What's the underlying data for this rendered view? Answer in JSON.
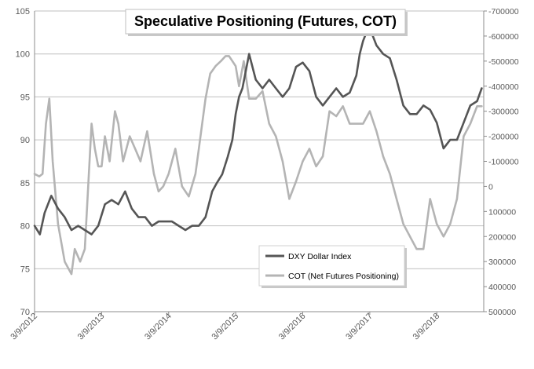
{
  "chart_data": {
    "type": "line",
    "title": "Speculative Positioning (Futures, COT)",
    "xlabel": "",
    "ylabel": "",
    "x_ticks": [
      "3/9/2012",
      "3/9/2013",
      "3/9/2014",
      "3/9/2015",
      "3/9/2016",
      "3/9/2017",
      "3/9/2018"
    ],
    "x_range": [
      2012.0,
      2018.7
    ],
    "y_left": {
      "ylim": [
        70,
        105
      ],
      "ticks": [
        "70",
        "75",
        "80",
        "85",
        "90",
        "95",
        "100",
        "105"
      ]
    },
    "y_right": {
      "ylim": [
        500000,
        -700000
      ],
      "inverted": true,
      "ticks": [
        "500000",
        "400000",
        "300000",
        "200000",
        "100000",
        "0",
        "-100000",
        "-200000",
        "-300000",
        "-400000",
        "-500000",
        "-600000",
        "-700000"
      ]
    },
    "grid": true,
    "legend_position": "bottom-right",
    "series": [
      {
        "name": "DXY Dollar Index",
        "axis": "left",
        "color": "#555555",
        "x": [
          2012.0,
          2012.08,
          2012.15,
          2012.25,
          2012.35,
          2012.45,
          2012.55,
          2012.65,
          2012.75,
          2012.85,
          2012.95,
          2013.05,
          2013.15,
          2013.25,
          2013.35,
          2013.45,
          2013.55,
          2013.65,
          2013.75,
          2013.85,
          2013.95,
          2014.05,
          2014.15,
          2014.25,
          2014.35,
          2014.45,
          2014.55,
          2014.65,
          2014.72,
          2014.8,
          2014.88,
          2014.95,
          2015.0,
          2015.05,
          2015.1,
          2015.2,
          2015.3,
          2015.4,
          2015.5,
          2015.6,
          2015.7,
          2015.8,
          2015.9,
          2016.0,
          2016.1,
          2016.2,
          2016.3,
          2016.4,
          2016.5,
          2016.6,
          2016.7,
          2016.8,
          2016.85,
          2016.9,
          2016.95,
          2017.0,
          2017.1,
          2017.2,
          2017.3,
          2017.4,
          2017.5,
          2017.6,
          2017.7,
          2017.8,
          2017.9,
          2018.0,
          2018.1,
          2018.2,
          2018.3,
          2018.4,
          2018.5,
          2018.6,
          2018.67
        ],
        "values": [
          80.0,
          79.0,
          81.5,
          83.5,
          82.0,
          81.0,
          79.5,
          80.0,
          79.5,
          79.0,
          80.0,
          82.5,
          83.0,
          82.5,
          84.0,
          82.0,
          81.0,
          81.0,
          80.0,
          80.5,
          80.5,
          80.5,
          80.0,
          79.5,
          80.0,
          80.0,
          81.0,
          84.0,
          85.0,
          86.0,
          88.0,
          90.0,
          93.0,
          95.0,
          96.0,
          100.0,
          97.0,
          96.0,
          97.0,
          96.0,
          95.0,
          96.0,
          98.5,
          99.0,
          98.0,
          95.0,
          94.0,
          95.0,
          96.0,
          95.0,
          95.5,
          97.5,
          100.0,
          101.5,
          102.5,
          103.0,
          101.0,
          100.0,
          99.5,
          97.0,
          94.0,
          93.0,
          93.0,
          94.0,
          93.5,
          92.0,
          89.0,
          90.0,
          90.0,
          92.0,
          94.0,
          94.5,
          96.0
        ]
      },
      {
        "name": "COT (Net Futures Positioning)",
        "axis": "right",
        "color": "#b4b4b4",
        "x": [
          2012.0,
          2012.07,
          2012.12,
          2012.17,
          2012.22,
          2012.27,
          2012.35,
          2012.45,
          2012.55,
          2012.6,
          2012.68,
          2012.75,
          2012.85,
          2012.9,
          2012.95,
          2013.0,
          2013.05,
          2013.12,
          2013.2,
          2013.25,
          2013.32,
          2013.42,
          2013.5,
          2013.58,
          2013.68,
          2013.78,
          2013.85,
          2013.92,
          2014.0,
          2014.1,
          2014.2,
          2014.3,
          2014.4,
          2014.45,
          2014.55,
          2014.62,
          2014.7,
          2014.78,
          2014.85,
          2014.9,
          2014.95,
          2015.0,
          2015.05,
          2015.12,
          2015.2,
          2015.3,
          2015.4,
          2015.5,
          2015.6,
          2015.7,
          2015.8,
          2015.9,
          2016.0,
          2016.1,
          2016.2,
          2016.3,
          2016.4,
          2016.5,
          2016.6,
          2016.7,
          2016.8,
          2016.9,
          2017.0,
          2017.1,
          2017.2,
          2017.3,
          2017.4,
          2017.5,
          2017.6,
          2017.7,
          2017.8,
          2017.9,
          2018.0,
          2018.1,
          2018.2,
          2018.3,
          2018.4,
          2018.5,
          2018.6,
          2018.67
        ],
        "values": [
          -50000,
          -40000,
          -50000,
          -250000,
          -350000,
          -100000,
          150000,
          300000,
          350000,
          250000,
          300000,
          250000,
          -250000,
          -150000,
          -80000,
          -80000,
          -200000,
          -100000,
          -300000,
          -250000,
          -100000,
          -200000,
          -150000,
          -100000,
          -220000,
          -50000,
          20000,
          0,
          -50000,
          -150000,
          0,
          40000,
          -50000,
          -150000,
          -350000,
          -450000,
          -480000,
          -500000,
          -520000,
          -520000,
          -500000,
          -480000,
          -400000,
          -500000,
          -350000,
          -350000,
          -380000,
          -250000,
          -200000,
          -100000,
          50000,
          -20000,
          -100000,
          -150000,
          -80000,
          -120000,
          -300000,
          -280000,
          -320000,
          -250000,
          -250000,
          -250000,
          -300000,
          -220000,
          -120000,
          -50000,
          50000,
          150000,
          200000,
          250000,
          250000,
          50000,
          150000,
          200000,
          150000,
          50000,
          -200000,
          -250000,
          -320000,
          -320000
        ]
      }
    ]
  }
}
